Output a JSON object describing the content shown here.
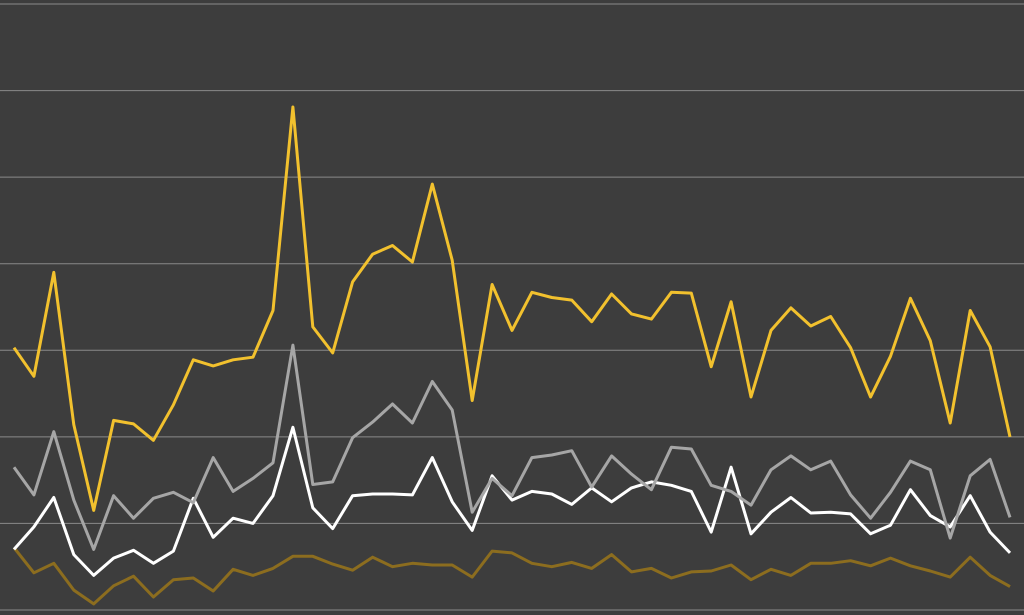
{
  "chart_data": {
    "type": "line",
    "categories": [
      null,
      null,
      null,
      null,
      null,
      null,
      null,
      null,
      null,
      null,
      null,
      null,
      null,
      null,
      null,
      null,
      null,
      null,
      null,
      null,
      null,
      null,
      null,
      null,
      null,
      null,
      null,
      null,
      null,
      null,
      null,
      null,
      null,
      null,
      null,
      null,
      null,
      null,
      null,
      null,
      null,
      null,
      null,
      null,
      null,
      null,
      null,
      null,
      null,
      null,
      null
    ],
    "ylim": [
      0,
      7
    ],
    "yticks": [
      0,
      1,
      2,
      3,
      4,
      5,
      6,
      7
    ],
    "grid": true,
    "series": [
      {
        "color": "#f2c12e",
        "values": [
          3.03,
          2.7,
          3.9,
          2.14,
          1.15,
          2.19,
          2.15,
          1.96,
          2.37,
          2.89,
          2.82,
          2.89,
          2.92,
          3.46,
          5.81,
          3.27,
          2.97,
          3.79,
          4.11,
          4.21,
          4.02,
          4.92,
          4.04,
          2.42,
          3.76,
          3.23,
          3.67,
          3.61,
          3.58,
          3.33,
          3.65,
          3.42,
          3.36,
          3.67,
          3.66,
          2.81,
          3.56,
          2.46,
          3.23,
          3.49,
          3.28,
          3.39,
          3.03,
          2.46,
          2.93,
          3.6,
          3.11,
          2.16,
          3.46,
          3.04,
          2.0
        ]
      },
      {
        "color": "#a6a6a6",
        "values": [
          1.65,
          1.33,
          2.06,
          1.27,
          0.7,
          1.32,
          1.06,
          1.29,
          1.36,
          1.24,
          1.76,
          1.37,
          1.52,
          1.7,
          3.06,
          1.45,
          1.48,
          1.99,
          2.17,
          2.38,
          2.16,
          2.64,
          2.31,
          1.13,
          1.52,
          1.32,
          1.76,
          1.79,
          1.84,
          1.42,
          1.78,
          1.57,
          1.39,
          1.88,
          1.86,
          1.44,
          1.37,
          1.21,
          1.62,
          1.78,
          1.62,
          1.72,
          1.33,
          1.06,
          1.36,
          1.72,
          1.62,
          0.83,
          1.55,
          1.74,
          1.07
        ]
      },
      {
        "color": "#ffffff",
        "values": [
          0.7,
          0.96,
          1.3,
          0.64,
          0.4,
          0.6,
          0.69,
          0.54,
          0.68,
          1.29,
          0.84,
          1.06,
          1.0,
          1.32,
          2.11,
          1.18,
          0.94,
          1.32,
          1.34,
          1.34,
          1.33,
          1.76,
          1.25,
          0.92,
          1.55,
          1.27,
          1.37,
          1.34,
          1.22,
          1.41,
          1.25,
          1.41,
          1.48,
          1.44,
          1.37,
          0.9,
          1.65,
          0.88,
          1.13,
          1.3,
          1.12,
          1.13,
          1.11,
          0.88,
          0.98,
          1.39,
          1.09,
          0.96,
          1.32,
          0.9,
          0.66
        ]
      },
      {
        "color": "#8c6d1f",
        "values": [
          0.72,
          0.43,
          0.54,
          0.23,
          0.07,
          0.28,
          0.39,
          0.15,
          0.35,
          0.37,
          0.22,
          0.47,
          0.4,
          0.48,
          0.62,
          0.62,
          0.53,
          0.46,
          0.61,
          0.5,
          0.54,
          0.52,
          0.52,
          0.38,
          0.68,
          0.66,
          0.54,
          0.5,
          0.55,
          0.48,
          0.64,
          0.44,
          0.48,
          0.37,
          0.44,
          0.45,
          0.52,
          0.35,
          0.47,
          0.4,
          0.54,
          0.54,
          0.57,
          0.51,
          0.6,
          0.51,
          0.45,
          0.38,
          0.61,
          0.4,
          0.27
        ]
      }
    ]
  }
}
